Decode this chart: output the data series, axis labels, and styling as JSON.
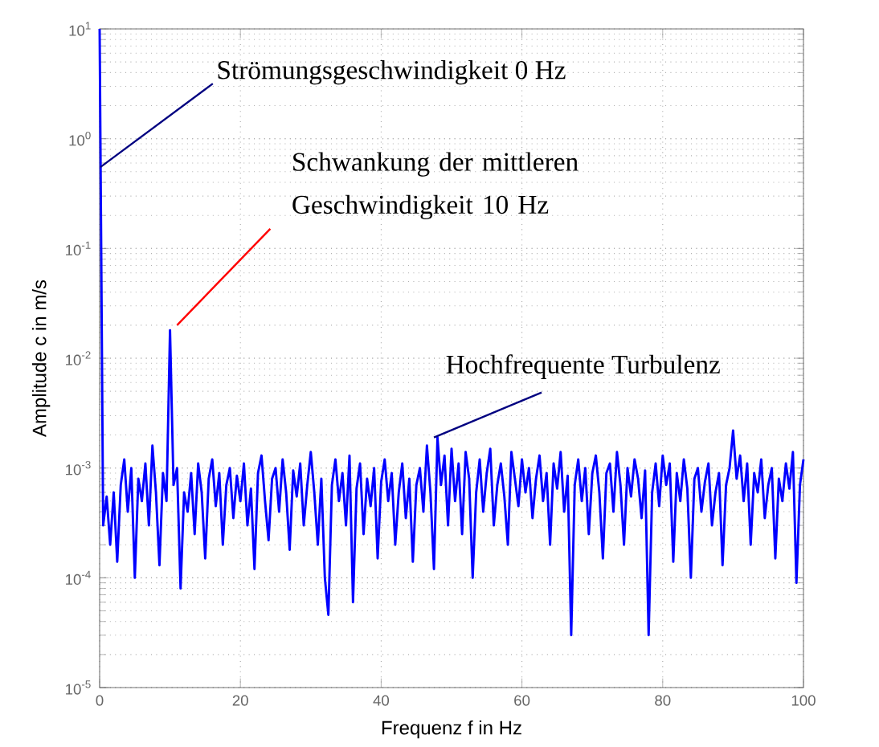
{
  "chart_data": {
    "type": "line",
    "xlabel": "Frequenz f in Hz",
    "ylabel": "Amplitude c in m/s",
    "log": true,
    "grid": true,
    "marker": "none",
    "line_style": "solid",
    "xlim": [
      0,
      100
    ],
    "ylim": [
      1e-05,
      10
    ],
    "xticks": [
      0,
      20,
      40,
      60,
      80,
      100
    ],
    "yticks": [
      {
        "value": 1e-05,
        "label": "10$^{-5}$"
      },
      {
        "value": 0.0001,
        "label": "10$^{-4}$"
      },
      {
        "value": 0.001,
        "label": "10$^{-3}$"
      },
      {
        "value": 0.01,
        "label": "10$^{-2}$"
      },
      {
        "value": 0.1,
        "label": "10$^{-1}$"
      },
      {
        "value": 1,
        "label": "10$^{0}$"
      },
      {
        "value": 10,
        "label": "10$^{1}$"
      }
    ],
    "annotations": [
      {
        "text": "Strömungsgeschwindigkeit 0 Hz",
        "x": 0.1,
        "y": 0.55
      },
      {
        "text": "Schwankung der mittleren Geschwindigkeit 10 Hz",
        "x": 11,
        "y": 0.02
      },
      {
        "text": "Hochfrequente Turbulenz",
        "x": 47.5,
        "y": 0.0019
      }
    ],
    "series": [
      {
        "color": "#0000ff",
        "x": [
          0,
          0.5,
          1,
          1.5,
          2,
          2.5,
          3,
          3.5,
          4,
          4.5,
          5,
          5.5,
          6,
          6.5,
          7,
          7.5,
          8,
          8.5,
          9,
          9.5,
          10,
          10.5,
          11,
          11.5,
          12,
          12.5,
          13,
          13.5,
          14,
          14.5,
          15,
          15.5,
          16,
          16.5,
          17,
          17.5,
          18,
          18.5,
          19,
          19.5,
          20,
          20.5,
          21,
          21.5,
          22,
          22.5,
          23,
          23.5,
          24,
          24.5,
          25,
          25.5,
          26,
          26.5,
          27,
          27.5,
          28,
          28.5,
          29,
          29.5,
          30,
          30.5,
          31,
          31.5,
          32,
          32.5,
          33,
          33.5,
          34,
          34.5,
          35,
          35.5,
          36,
          36.5,
          37,
          37.5,
          38,
          38.5,
          39,
          39.5,
          40,
          40.5,
          41,
          41.5,
          42,
          42.5,
          43,
          43.5,
          44,
          44.5,
          45,
          45.5,
          46,
          46.5,
          47,
          47.5,
          48,
          48.5,
          49,
          49.5,
          50,
          50.5,
          51,
          51.5,
          52,
          52.5,
          53,
          53.5,
          54,
          54.5,
          55,
          55.5,
          56,
          56.5,
          57,
          57.5,
          58,
          58.5,
          59,
          59.5,
          60,
          60.5,
          61,
          61.5,
          62,
          62.5,
          63,
          63.5,
          64,
          64.5,
          65,
          65.5,
          66,
          66.5,
          67,
          67.5,
          68,
          68.5,
          69,
          69.5,
          70,
          70.5,
          71,
          71.5,
          72,
          72.5,
          73,
          73.5,
          74,
          74.5,
          75,
          75.5,
          76,
          76.5,
          77,
          77.5,
          78,
          78.5,
          79,
          79.5,
          80,
          80.5,
          81,
          81.5,
          82,
          82.5,
          83,
          83.5,
          84,
          84.5,
          85,
          85.5,
          86,
          86.5,
          87,
          87.5,
          88,
          88.5,
          89,
          89.5,
          90,
          90.5,
          91,
          91.5,
          92,
          92.5,
          93,
          93.5,
          94,
          94.5,
          95,
          95.5,
          96,
          96.5,
          97,
          97.5,
          98,
          98.5,
          99,
          99.5,
          100
        ],
        "values": [
          10,
          0.0003,
          0.00055,
          0.0002,
          0.0006,
          0.00014,
          0.0007,
          0.0012,
          0.0004,
          0.001,
          0.0001,
          0.0008,
          0.0005,
          0.0011,
          0.0003,
          0.0016,
          0.0006,
          0.00013,
          0.0009,
          0.0005,
          0.018,
          0.0007,
          0.001,
          8e-05,
          0.0006,
          0.0004,
          0.0009,
          0.00025,
          0.0011,
          0.0006,
          0.00015,
          0.0008,
          0.0012,
          0.00045,
          0.0009,
          0.0002,
          0.0007,
          0.001,
          0.00035,
          0.00085,
          0.0005,
          0.0011,
          0.0003,
          0.00065,
          0.00012,
          0.0009,
          0.0013,
          0.0005,
          0.00022,
          0.0008,
          0.001,
          0.0004,
          0.0012,
          0.0006,
          0.00018,
          0.00095,
          0.00055,
          0.0011,
          0.0003,
          0.0007,
          0.0014,
          0.0006,
          0.0002,
          0.0008,
          0.0001,
          4.6e-05,
          0.0007,
          0.0012,
          0.0005,
          0.0009,
          0.0003,
          0.0013,
          6e-05,
          0.00065,
          0.0011,
          0.00025,
          0.0008,
          0.00045,
          0.001,
          0.00015,
          0.00075,
          0.0012,
          0.0005,
          0.0009,
          0.0002,
          0.0006,
          0.0011,
          0.00035,
          0.0008,
          0.00014,
          0.0007,
          0.001,
          0.0004,
          0.0016,
          0.0006,
          0.00012,
          0.0019,
          0.0007,
          0.0013,
          0.0003,
          0.0015,
          0.0005,
          0.0011,
          0.00025,
          0.0014,
          0.0008,
          0.0001,
          0.0006,
          0.0012,
          0.0004,
          0.0009,
          0.0015,
          0.0003,
          0.0007,
          0.0011,
          0.00055,
          0.0002,
          0.0014,
          0.0008,
          0.00045,
          0.0012,
          0.0006,
          0.001,
          0.00035,
          0.0008,
          0.0013,
          0.0005,
          0.0009,
          0.0002,
          0.0011,
          0.00065,
          0.0014,
          0.0004,
          0.00085,
          3e-05,
          0.0007,
          0.0012,
          0.0005,
          0.001,
          0.00025,
          0.0009,
          0.0013,
          0.0006,
          0.00015,
          0.0009,
          0.0011,
          0.0004,
          0.0014,
          0.0007,
          0.0002,
          0.001,
          0.00055,
          0.0012,
          0.0008,
          0.00035,
          0.00095,
          3e-05,
          0.0006,
          0.0011,
          0.00045,
          0.0013,
          0.0007,
          0.0011,
          0.00014,
          0.0009,
          0.0005,
          0.0012,
          0.00065,
          0.0001,
          0.0008,
          0.001,
          0.0004,
          0.00075,
          0.0011,
          0.0003,
          0.0006,
          0.0009,
          0.00013,
          0.0007,
          0.001,
          0.0022,
          0.0008,
          0.0013,
          0.0005,
          0.0011,
          0.0002,
          0.0009,
          0.0006,
          0.0012,
          0.00035,
          0.0007,
          0.001,
          0.00015,
          0.0008,
          0.0005,
          0.0011,
          0.00065,
          0.0014,
          9e-05,
          0.0007,
          0.0012
        ]
      }
    ]
  }
}
